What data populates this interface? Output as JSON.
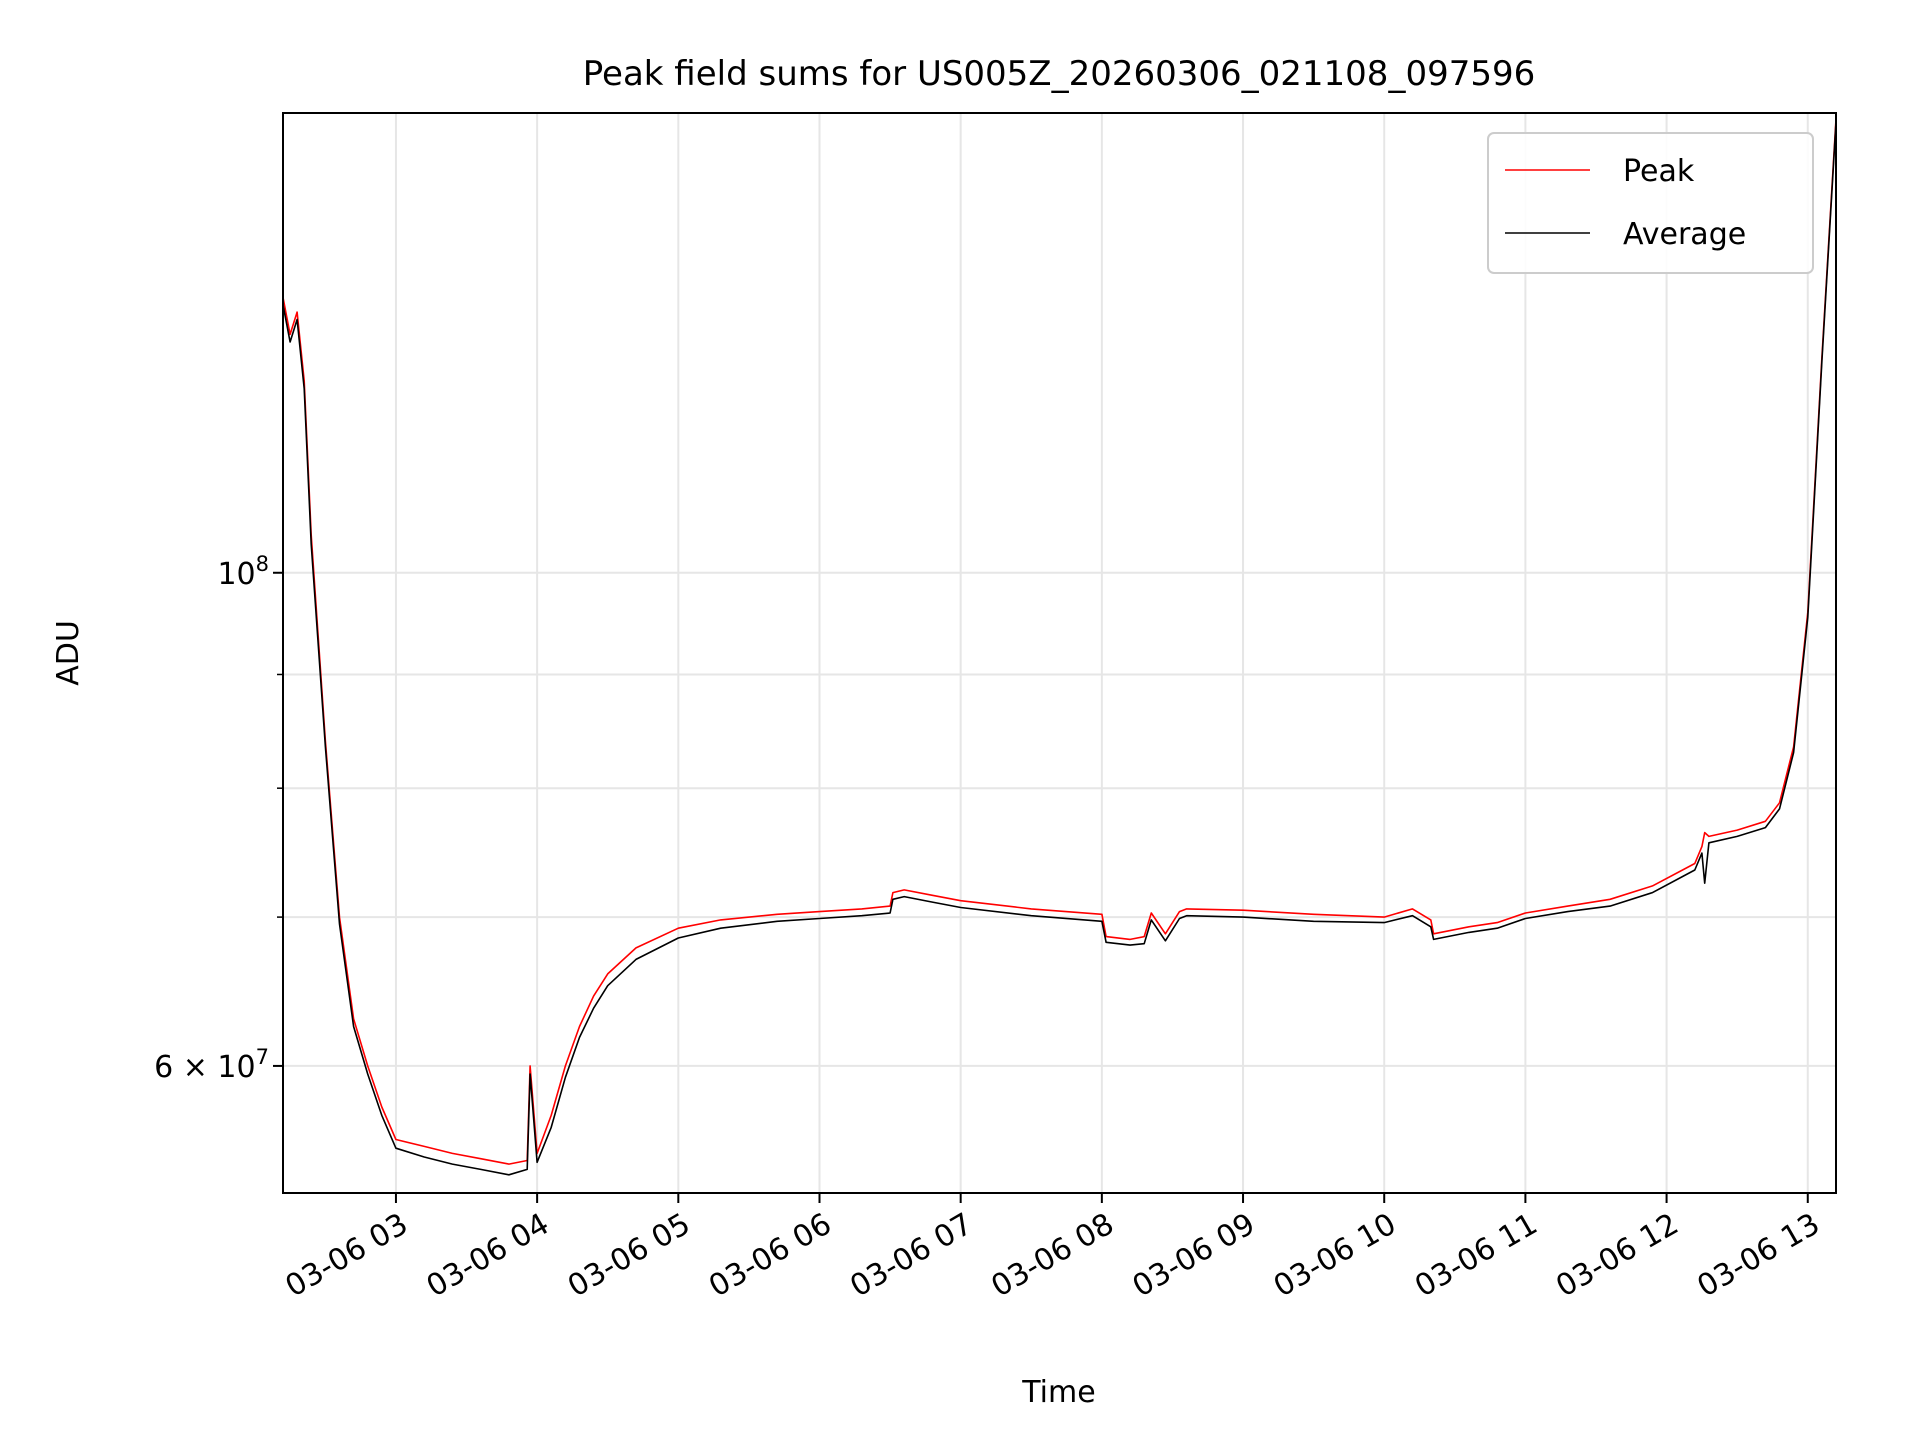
{
  "chart_data": {
    "type": "line",
    "title": "Peak field sums for US005Z_20260306_021108_097596",
    "xlabel": "Time",
    "ylabel": "ADU",
    "yscale": "log",
    "ylim": [
      52600000,
      161000000
    ],
    "xlim": [
      2.2,
      13.2
    ],
    "grid": true,
    "legend_position": "top-right",
    "x_tick_labels": [
      "03-06 03",
      "03-06 04",
      "03-06 05",
      "03-06 06",
      "03-06 07",
      "03-06 08",
      "03-06 09",
      "03-06 10",
      "03-06 11",
      "03-06 12",
      "03-06 13"
    ],
    "x_ticks": [
      3,
      4,
      5,
      6,
      7,
      8,
      9,
      10,
      11,
      12,
      13
    ],
    "y_major_ticks": [
      {
        "value": 100000000,
        "base": "10",
        "exp": "8"
      },
      {
        "value": 60000000,
        "base": "6 × 10",
        "exp": "7"
      }
    ],
    "y_minor_ticks": [
      70000000,
      80000000,
      90000000
    ],
    "series": [
      {
        "name": "Peak",
        "color": "#ff0000",
        "x": [
          2.2,
          2.25,
          2.3,
          2.35,
          2.4,
          2.5,
          2.6,
          2.7,
          2.8,
          2.9,
          3.0,
          3.2,
          3.4,
          3.6,
          3.8,
          3.93,
          3.95,
          4.0,
          4.1,
          4.2,
          4.3,
          4.4,
          4.5,
          4.7,
          5.0,
          5.3,
          5.7,
          6.0,
          6.3,
          6.5,
          6.52,
          6.6,
          6.8,
          7.0,
          7.5,
          8.0,
          8.03,
          8.2,
          8.3,
          8.35,
          8.45,
          8.55,
          8.6,
          9.0,
          9.5,
          10.0,
          10.2,
          10.33,
          10.35,
          10.6,
          10.8,
          11.0,
          11.3,
          11.6,
          11.9,
          12.2,
          12.25,
          12.27,
          12.3,
          12.5,
          12.7,
          12.8,
          12.9,
          13.0,
          13.1,
          13.2
        ],
        "values": [
          133000000,
          128000000,
          131000000,
          122000000,
          104000000,
          84000000,
          70000000,
          63000000,
          60000000,
          57500000,
          55600000,
          55200000,
          54800000,
          54500000,
          54200000,
          54400000,
          60000000,
          54800000,
          57000000,
          60000000,
          62500000,
          64500000,
          66000000,
          67800000,
          69200000,
          69800000,
          70200000,
          70400000,
          70600000,
          70800000,
          71800000,
          72000000,
          71600000,
          71200000,
          70600000,
          70200000,
          68600000,
          68400000,
          68600000,
          70300000,
          68800000,
          70400000,
          70600000,
          70500000,
          70200000,
          70000000,
          70600000,
          69800000,
          68800000,
          69300000,
          69600000,
          70300000,
          70800000,
          71300000,
          72300000,
          74000000,
          75300000,
          76400000,
          76100000,
          76600000,
          77300000,
          78800000,
          83500000,
          96000000,
          125000000,
          160000000
        ]
      },
      {
        "name": "Average",
        "color": "#000000",
        "x": [
          2.2,
          2.25,
          2.3,
          2.35,
          2.4,
          2.5,
          2.6,
          2.7,
          2.8,
          2.9,
          3.0,
          3.2,
          3.4,
          3.6,
          3.8,
          3.93,
          3.95,
          4.0,
          4.1,
          4.2,
          4.3,
          4.4,
          4.5,
          4.7,
          5.0,
          5.3,
          5.7,
          6.0,
          6.3,
          6.5,
          6.52,
          6.6,
          6.8,
          7.0,
          7.5,
          8.0,
          8.03,
          8.2,
          8.3,
          8.35,
          8.45,
          8.55,
          8.6,
          9.0,
          9.5,
          10.0,
          10.2,
          10.33,
          10.35,
          10.6,
          10.8,
          11.0,
          11.3,
          11.6,
          11.9,
          12.2,
          12.25,
          12.27,
          12.3,
          12.5,
          12.7,
          12.8,
          12.9,
          13.0,
          13.1,
          13.2
        ],
        "values": [
          132000000,
          127000000,
          130000000,
          121000000,
          103000000,
          83500000,
          69500000,
          62500000,
          59500000,
          57000000,
          55100000,
          54600000,
          54200000,
          53900000,
          53600000,
          53900000,
          59500000,
          54300000,
          56300000,
          59300000,
          61800000,
          63700000,
          65200000,
          67000000,
          68500000,
          69200000,
          69700000,
          69900000,
          70100000,
          70300000,
          71300000,
          71500000,
          71100000,
          70700000,
          70100000,
          69700000,
          68200000,
          68000000,
          68100000,
          69800000,
          68300000,
          69900000,
          70100000,
          70000000,
          69700000,
          69600000,
          70100000,
          69300000,
          68400000,
          68900000,
          69200000,
          69900000,
          70400000,
          70800000,
          71800000,
          73500000,
          74800000,
          72500000,
          75600000,
          76100000,
          76800000,
          78300000,
          83000000,
          95500000,
          124500000,
          159500000
        ]
      }
    ]
  }
}
